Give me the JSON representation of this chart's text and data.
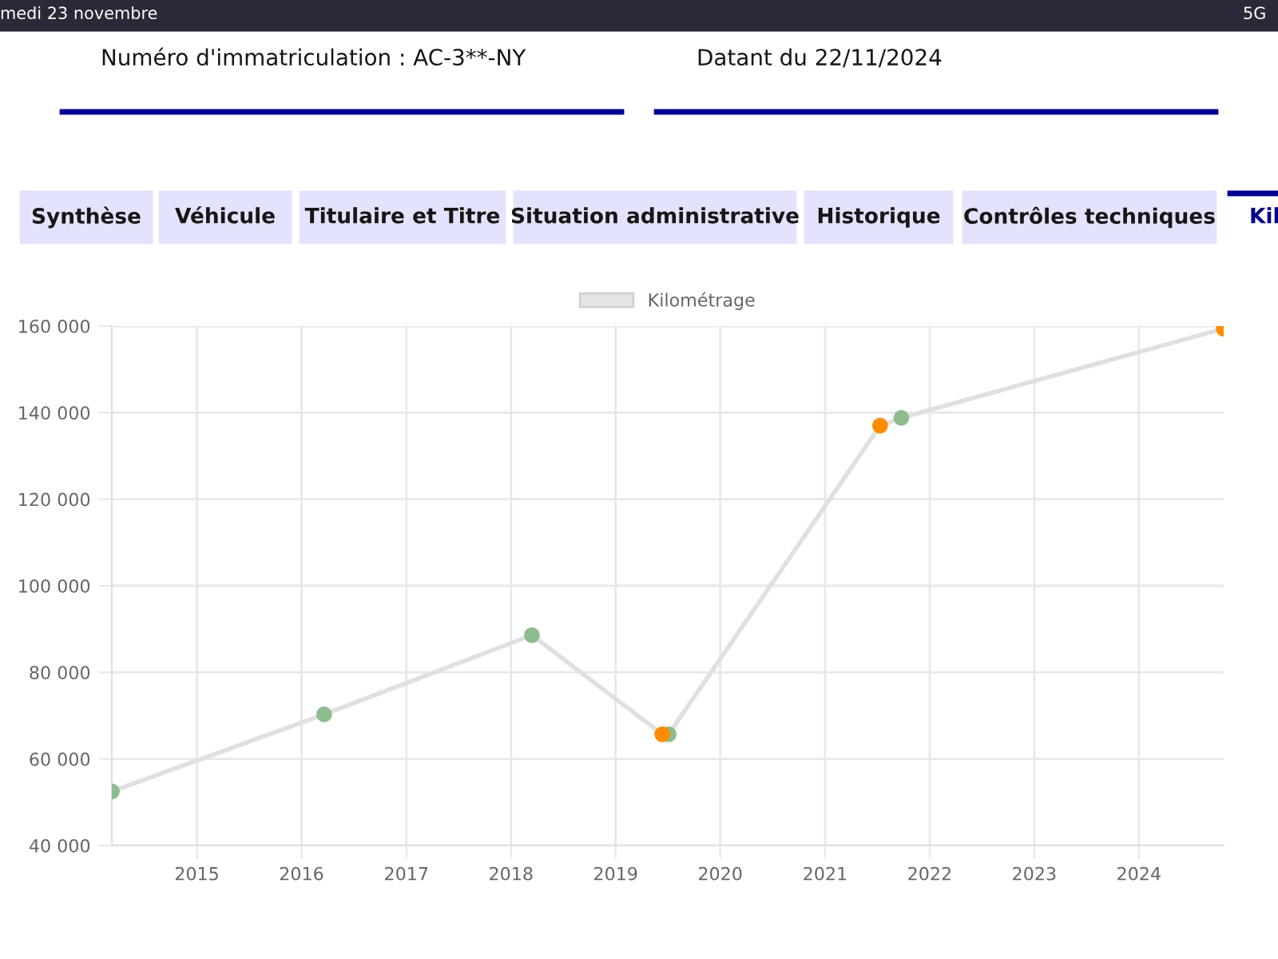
{
  "chart_data": {
    "type": "line",
    "x": [
      "2014-03-10",
      "2016-03-20",
      "2018-03-15",
      "2019-06-13",
      "2019-07-05",
      "2021-07-12",
      "2021-09-24",
      "2024-10-23"
    ],
    "series": [
      {
        "name": "Kilométrage",
        "color": "#e0e0e0",
        "colors": [
          "#8fbc8f",
          "#8fbc8f",
          "#8fbc8f",
          "#ff8c00",
          "#8fbc8f",
          "#ff8c00",
          "#8fbc8f",
          "#ff8c00"
        ],
        "values": [
          52500,
          70300,
          88600,
          65700,
          65700,
          137000,
          138800,
          159400
        ]
      }
    ],
    "xlim": [
      "2014-03-10",
      "2024-10-23"
    ],
    "xticks": [
      {
        "value": "2015-01-01",
        "label": "2015"
      },
      {
        "value": "2016-01-01",
        "label": "2016"
      },
      {
        "value": "2017-01-01",
        "label": "2017"
      },
      {
        "value": "2018-01-01",
        "label": "2018"
      },
      {
        "value": "2019-01-01",
        "label": "2019"
      },
      {
        "value": "2020-01-01",
        "label": "2020"
      },
      {
        "value": "2021-01-01",
        "label": "2021"
      },
      {
        "value": "2022-01-01",
        "label": "2022"
      },
      {
        "value": "2023-01-01",
        "label": "2023"
      },
      {
        "value": "2024-01-01",
        "label": "2024"
      }
    ],
    "ylim": [
      40000,
      160000
    ],
    "yticks": [
      {
        "value": 40000,
        "label": "40 000"
      },
      {
        "value": 60000,
        "label": "60 000"
      },
      {
        "value": 80000,
        "label": "80 000"
      },
      {
        "value": 100000,
        "label": "100 000"
      },
      {
        "value": 120000,
        "label": "120 000"
      },
      {
        "value": 140000,
        "label": "140 000"
      },
      {
        "value": 160000,
        "label": "160 000"
      }
    ],
    "grid": true,
    "legend": "top",
    "marker": "circle",
    "line_style": "solid",
    "annotations": [
      "medi 23 novembre",
      "5G",
      "Numéro d'immatriculation : AC-3**-NY",
      "Datant du 22/11/2024",
      "Synthèse",
      "Véhicule",
      "Titulaire et Titre",
      "Situation administrative",
      "Historique",
      "Contrôles techniques",
      "Kil"
    ]
  }
}
